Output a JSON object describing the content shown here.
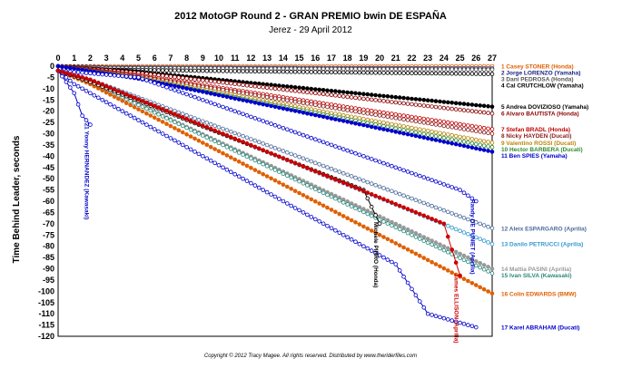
{
  "chart_data": {
    "type": "line",
    "title": "2012 MotoGP Round 2 - GRAN PREMIO bwin DE ESPAÑA",
    "subtitle": "Jerez - 29 April 2012",
    "ylabel": "Time Behind Leader, seconds",
    "xlabel": "",
    "xlim": [
      0,
      27
    ],
    "ylim": [
      -120,
      0
    ],
    "x_ticks": [
      0,
      1,
      2,
      3,
      4,
      5,
      6,
      7,
      8,
      9,
      10,
      11,
      12,
      13,
      14,
      15,
      16,
      17,
      18,
      19,
      20,
      21,
      22,
      23,
      24,
      25,
      26,
      27
    ],
    "y_ticks": [
      0,
      -5,
      -10,
      -15,
      -20,
      -25,
      -30,
      -35,
      -40,
      -45,
      -50,
      -55,
      -60,
      -65,
      -70,
      -75,
      -80,
      -85,
      -90,
      -95,
      -100,
      -105,
      -110,
      -115,
      -120
    ],
    "grid": true,
    "copyright": "Copyright © 2012 Tracy Magee. All rights reserved. Distributed by www.theriderfiles.com",
    "series": [
      {
        "name": "1 Casey STONER (Honda)",
        "color": "#e06000",
        "marker": "open",
        "x": [
          0,
          27
        ],
        "y": [
          0,
          0
        ]
      },
      {
        "name": "2 Jorge LORENZO (Yamaha)",
        "color": "#1a237e",
        "marker": "open",
        "x": [
          0,
          3,
          27
        ],
        "y": [
          0,
          -0.5,
          -1
        ]
      },
      {
        "name": "3 Dani PEDROSA (Honda)",
        "color": "#555555",
        "marker": "open",
        "x": [
          0,
          3,
          27
        ],
        "y": [
          0,
          -0.8,
          -1.5
        ]
      },
      {
        "name": "4 Cal CRUTCHLOW (Yamaha)",
        "color": "#000000",
        "marker": "open",
        "x": [
          0,
          2,
          27
        ],
        "y": [
          0,
          -1.5,
          -3.5
        ]
      },
      {
        "name": "5 Andrea DOVIZIOSO (Yamaha)",
        "color": "#000000",
        "marker": "filled",
        "x": [
          0,
          5,
          27
        ],
        "y": [
          0,
          -2.5,
          -18
        ]
      },
      {
        "name": "6 Alvaro BAUTISTA (Honda)",
        "color": "#8b0000",
        "marker": "open",
        "x": [
          0,
          5,
          27
        ],
        "y": [
          0,
          -3,
          -21
        ]
      },
      {
        "name": "7 Stefan BRADL (Honda)",
        "color": "#c00000",
        "marker": "open",
        "x": [
          0,
          5,
          27
        ],
        "y": [
          0,
          -4,
          -28
        ]
      },
      {
        "name": "8 Nicky HAYDEN (Ducati)",
        "color": "#8b2020",
        "marker": "open",
        "x": [
          0,
          5,
          27
        ],
        "y": [
          0,
          -4.5,
          -30
        ]
      },
      {
        "name": "9 Valentino ROSSI (Ducati)",
        "color": "#b8860b",
        "marker": "open",
        "x": [
          0,
          5,
          27
        ],
        "y": [
          0,
          -5,
          -34
        ]
      },
      {
        "name": "10 Hector BARBERA (Ducati)",
        "color": "#2e8b2e",
        "marker": "open",
        "x": [
          0,
          5,
          27
        ],
        "y": [
          0,
          -5.5,
          -36
        ]
      },
      {
        "name": "11 Ben SPIES (Yamaha)",
        "color": "#0000cc",
        "marker": "filled",
        "x": [
          0,
          5,
          27
        ],
        "y": [
          0,
          -5.5,
          -38
        ]
      },
      {
        "name": "12 Aleix ESPARGARO (Aprilia)",
        "color": "#4a6a9a",
        "marker": "open",
        "x": [
          0,
          2,
          27
        ],
        "y": [
          -2,
          -6,
          -72
        ]
      },
      {
        "name": "13 Danilo PETRUCCI (Aprilia)",
        "color": "#3399cc",
        "marker": "open",
        "x": [
          0,
          2,
          27
        ],
        "y": [
          -2,
          -6,
          -79
        ]
      },
      {
        "name": "14 Mattia PASINI (Aprilia)",
        "color": "#999999",
        "marker": "filled",
        "x": [
          0,
          2,
          27
        ],
        "y": [
          -2,
          -7,
          -90
        ]
      },
      {
        "name": "15 Ivan SILVA (Kawasaki)",
        "color": "#2a8a7a",
        "marker": "open",
        "x": [
          0,
          2,
          27
        ],
        "y": [
          -2,
          -7,
          -92
        ]
      },
      {
        "name": "16 Colin EDWARDS (BMW)",
        "color": "#e06000",
        "marker": "filled",
        "x": [
          0,
          2,
          27
        ],
        "y": [
          -2,
          -8,
          -101
        ]
      },
      {
        "name": "17 Karel ABRAHAM (Ducati)",
        "color": "#0000cc",
        "marker": "open",
        "x": [
          0,
          1,
          21,
          23,
          26
        ],
        "y": [
          -2,
          -8,
          -88,
          -110,
          -116
        ]
      },
      {
        "name": "Yonny HERNANDEZ (Kawasaki)",
        "color": "#0000cc",
        "marker": "open",
        "x": [
          0,
          1,
          1.5,
          2
        ],
        "y": [
          -2,
          -12,
          -22,
          -26
        ],
        "annotation": "21 Yonny HERNANDEZ (Kawasaki)"
      },
      {
        "name": "Michele PIRRO (Honda)",
        "color": "#000000",
        "marker": "open",
        "x": [
          0,
          2,
          19,
          20
        ],
        "y": [
          -2,
          -7,
          -55,
          -70
        ],
        "annotation": "Michele PIRRO (Honda)"
      },
      {
        "name": "Randy DE PUNIET (Aprilia)",
        "color": "#0000cc",
        "marker": "open",
        "x": [
          0,
          5,
          25,
          26
        ],
        "y": [
          -2,
          -5,
          -55,
          -60
        ],
        "annotation": "Randy DE PUNIET (Aprilia)"
      },
      {
        "name": "James ELLISON (Aprilia)",
        "color": "#cc0000",
        "marker": "filled",
        "x": [
          0,
          2,
          24,
          25
        ],
        "y": [
          -2,
          -6,
          -70,
          -93
        ],
        "annotation": "James ELLISON (Aprilia)"
      }
    ]
  }
}
